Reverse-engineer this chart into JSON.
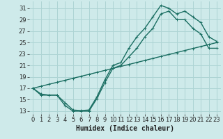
{
  "xlabel": "Humidex (Indice chaleur)",
  "bg_color": "#ceeaea",
  "grid_color": "#aed4d4",
  "line_color": "#1a6e62",
  "xlim": [
    -0.5,
    23.5
  ],
  "ylim": [
    12.5,
    32.2
  ],
  "xticks": [
    0,
    1,
    2,
    3,
    4,
    5,
    6,
    7,
    8,
    9,
    10,
    11,
    12,
    13,
    14,
    15,
    16,
    17,
    18,
    19,
    20,
    21,
    22,
    23
  ],
  "yticks": [
    13,
    15,
    17,
    19,
    21,
    23,
    25,
    27,
    29,
    31
  ],
  "line1_x": [
    0,
    1,
    2,
    3,
    4,
    5,
    6,
    7,
    8,
    9,
    10,
    11,
    12,
    13,
    14,
    15,
    16,
    17,
    18,
    19,
    20,
    21,
    22,
    23
  ],
  "line1_y": [
    17.0,
    16.0,
    15.8,
    15.8,
    14.5,
    13.2,
    13.1,
    13.2,
    15.5,
    18.5,
    21.0,
    21.5,
    24.0,
    26.0,
    27.5,
    29.5,
    31.5,
    31.0,
    30.0,
    30.5,
    29.5,
    28.5,
    26.0,
    25.2
  ],
  "line2_x": [
    0,
    1,
    2,
    3,
    4,
    5,
    6,
    7,
    8,
    9,
    10,
    11,
    12,
    13,
    14,
    15,
    16,
    17,
    18,
    19,
    20,
    21,
    22,
    23
  ],
  "line2_y": [
    17.0,
    15.8,
    15.8,
    15.8,
    14.0,
    13.0,
    13.0,
    13.0,
    15.2,
    18.0,
    20.5,
    21.0,
    22.5,
    24.0,
    26.0,
    27.5,
    30.0,
    30.5,
    29.0,
    29.0,
    27.5,
    26.5,
    24.0,
    24.0
  ],
  "line3_x": [
    0,
    1,
    2,
    3,
    4,
    5,
    6,
    7,
    8,
    9,
    10,
    11,
    12,
    13,
    14,
    15,
    16,
    17,
    18,
    19,
    20,
    21,
    22,
    23
  ],
  "line3_y": [
    17.0,
    17.35,
    17.7,
    18.04,
    18.39,
    18.74,
    19.09,
    19.43,
    19.78,
    20.13,
    20.48,
    20.83,
    21.17,
    21.52,
    21.87,
    22.22,
    22.57,
    22.91,
    23.26,
    23.61,
    23.96,
    24.3,
    24.65,
    25.0
  ],
  "marker_size": 3.0,
  "line_width": 1.0,
  "tick_fontsize": 6.0,
  "label_fontsize": 7.0
}
